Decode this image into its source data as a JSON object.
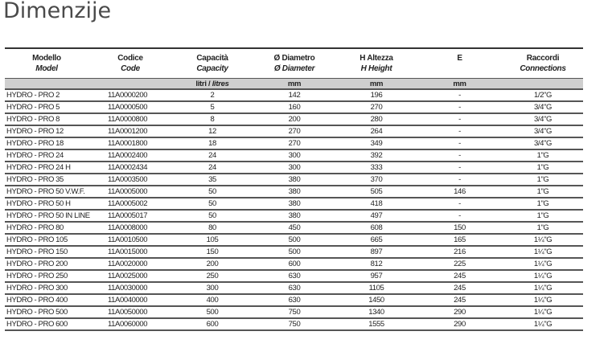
{
  "title": "Dimenzije",
  "table": {
    "headers": [
      {
        "it": "Modello",
        "en": "Model"
      },
      {
        "it": "Codice",
        "en": "Code"
      },
      {
        "it": "Capacità",
        "en": "Capacity"
      },
      {
        "it": "Ø Diametro",
        "en": "Ø Diameter"
      },
      {
        "it": "H Altezza",
        "en": "H Height"
      },
      {
        "it": "E",
        "en": ""
      },
      {
        "it": "Raccordi",
        "en": "Connections"
      }
    ],
    "units": {
      "capacity_it": "litri / ",
      "capacity_en": "litres",
      "diameter": "mm",
      "height": "mm",
      "e": "mm"
    },
    "rows": [
      [
        "HYDRO - PRO 2",
        "11A0000200",
        "2",
        "142",
        "196",
        "-",
        "1/2\"G"
      ],
      [
        "HYDRO - PRO 5",
        "11A0000500",
        "5",
        "160",
        "270",
        "-",
        "3/4\"G"
      ],
      [
        "HYDRO - PRO 8",
        "11A0000800",
        "8",
        "200",
        "280",
        "-",
        "3/4\"G"
      ],
      [
        "HYDRO - PRO 12",
        "11A0001200",
        "12",
        "270",
        "264",
        "-",
        "3/4\"G"
      ],
      [
        "HYDRO - PRO 18",
        "11A0001800",
        "18",
        "270",
        "349",
        "-",
        "3/4\"G"
      ],
      [
        "HYDRO - PRO 24",
        "11A0002400",
        "24",
        "300",
        "392",
        "-",
        "1\"G"
      ],
      [
        "HYDRO - PRO 24  H",
        "11A0002434",
        "24",
        "300",
        "333",
        "-",
        "1\"G"
      ],
      [
        "HYDRO - PRO 35",
        "11A0003500",
        "35",
        "380",
        "370",
        "-",
        "1\"G"
      ],
      [
        "HYDRO - PRO 50  V.W.F.",
        "11A0005000",
        "50",
        "380",
        "505",
        "146",
        "1\"G"
      ],
      [
        "HYDRO - PRO 50  H",
        "11A0005002",
        "50",
        "380",
        "418",
        "-",
        "1\"G"
      ],
      [
        "HYDRO - PRO 50  IN LINE",
        "11A0005017",
        "50",
        "380",
        "497",
        "-",
        "1\"G"
      ],
      [
        "HYDRO - PRO 80",
        "11A0008000",
        "80",
        "450",
        "608",
        "150",
        "1\"G"
      ],
      [
        "HYDRO - PRO 105",
        "11A0010500",
        "105",
        "500",
        "665",
        "165",
        "1¼\"G"
      ],
      [
        "HYDRO - PRO 150",
        "11A0015000",
        "150",
        "500",
        "897",
        "216",
        "1¼\"G"
      ],
      [
        "HYDRO - PRO 200",
        "11A0020000",
        "200",
        "600",
        "812",
        "225",
        "1¼\"G"
      ],
      [
        "HYDRO - PRO 250",
        "11A0025000",
        "250",
        "630",
        "957",
        "245",
        "1¼\"G"
      ],
      [
        "HYDRO - PRO 300",
        "11A0030000",
        "300",
        "630",
        "1105",
        "245",
        "1¼\"G"
      ],
      [
        "HYDRO - PRO 400",
        "11A0040000",
        "400",
        "630",
        "1450",
        "245",
        "1¼\"G"
      ],
      [
        "HYDRO - PRO 500",
        "11A0050000",
        "500",
        "750",
        "1340",
        "290",
        "1¼\"G"
      ],
      [
        "HYDRO - PRO 600",
        "11A0060000",
        "600",
        "750",
        "1555",
        "290",
        "1¼\"G"
      ]
    ]
  }
}
